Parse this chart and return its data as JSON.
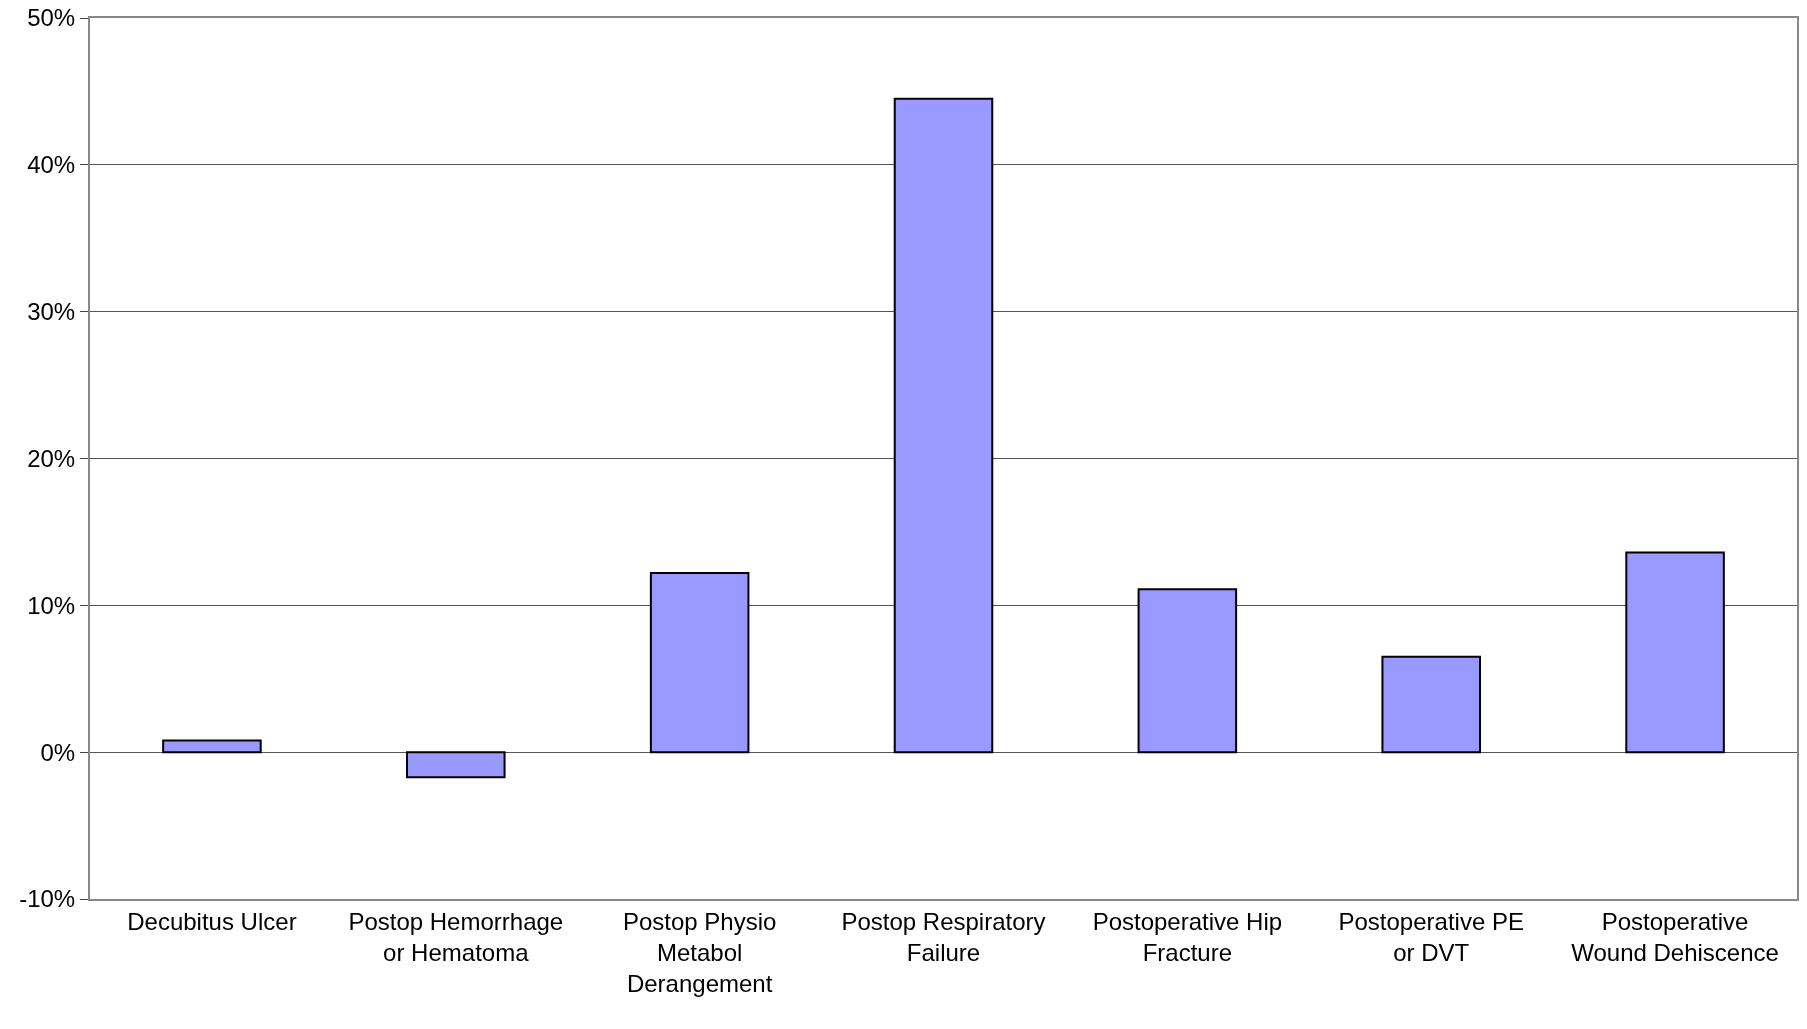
{
  "chart_data": {
    "type": "bar",
    "categories": [
      "Decubitus Ulcer",
      "Postop Hemorrhage or Hematoma",
      "Postop Physio Metabol Derangement",
      "Postop Respiratory Failure",
      "Postoperative Hip Fracture",
      "Postoperative PE or DVT",
      "Postoperative Wound Dehiscence"
    ],
    "values": [
      0.8,
      -1.7,
      12.2,
      44.5,
      11.1,
      6.5,
      13.6
    ],
    "color": "#9999ff",
    "ylim": [
      -10,
      50
    ],
    "yticks": [
      {
        "value": -10,
        "label": "-10%"
      },
      {
        "value": 0,
        "label": "0%"
      },
      {
        "value": 10,
        "label": "10%"
      },
      {
        "value": 20,
        "label": "20%"
      },
      {
        "value": 30,
        "label": "30%"
      },
      {
        "value": 40,
        "label": "40%"
      },
      {
        "value": 50,
        "label": "50%"
      }
    ],
    "grid": "y",
    "legend": false
  }
}
